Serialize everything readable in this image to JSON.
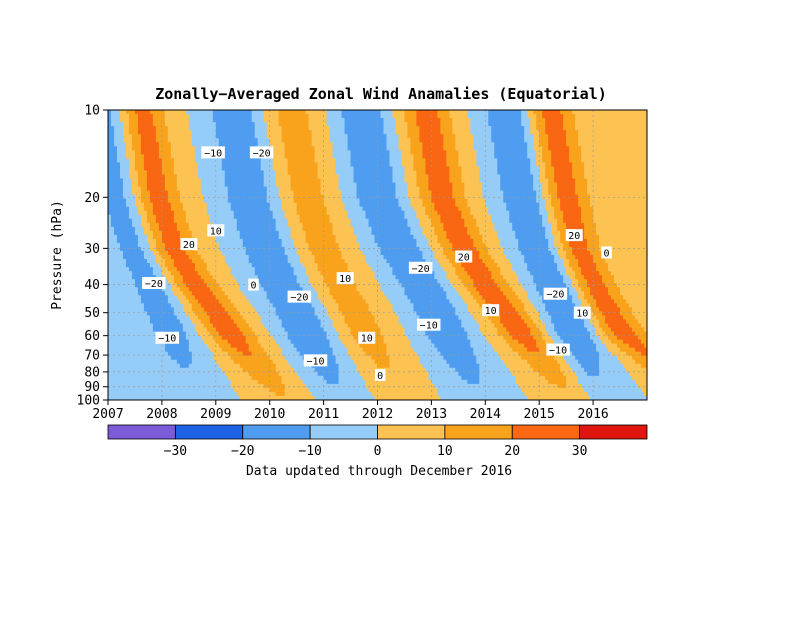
{
  "chart_data": {
    "type": "heatmap",
    "subtype": "filled-contour",
    "title": "Zonally−Averaged Zonal Wind Anamalies (Equatorial)",
    "ylabel": "Pressure (hPa)",
    "xlabel": "",
    "caption": "Data updated through December 2016",
    "x_range": [
      2007,
      2017
    ],
    "x_ticks": [
      "2007",
      "2008",
      "2009",
      "2010",
      "2011",
      "2012",
      "2013",
      "2014",
      "2015",
      "2016"
    ],
    "y_scale": "log",
    "y_range": [
      100,
      10
    ],
    "y_ticks": [
      "10",
      "20",
      "30",
      "40",
      "50",
      "60",
      "70",
      "80",
      "90",
      "100"
    ],
    "y_tick_values": [
      10,
      20,
      30,
      40,
      50,
      60,
      70,
      80,
      90,
      100
    ],
    "colorbar": {
      "boundaries": [
        -40,
        -30,
        -20,
        -10,
        0,
        10,
        20,
        30,
        40
      ],
      "labels": [
        "−30",
        "−20",
        "−10",
        "0",
        "10",
        "20",
        "30"
      ],
      "label_values": [
        -30,
        -20,
        -10,
        0,
        10,
        20,
        30
      ],
      "colors": [
        "#7b5bd6",
        "#1e63e3",
        "#4f9df0",
        "#96cdf8",
        "#fcc252",
        "#f9a31c",
        "#f96713",
        "#e0150e"
      ]
    },
    "grid": true,
    "contour_labels": [
      {
        "text": "−10",
        "x": 2008.95,
        "p": 14
      },
      {
        "text": "−20",
        "x": 2009.85,
        "p": 14
      },
      {
        "text": "20",
        "x": 2008.5,
        "p": 29
      },
      {
        "text": "10",
        "x": 2009.0,
        "p": 26
      },
      {
        "text": "−20",
        "x": 2007.85,
        "p": 39.5
      },
      {
        "text": "0",
        "x": 2009.7,
        "p": 40
      },
      {
        "text": "−20",
        "x": 2010.55,
        "p": 44
      },
      {
        "text": "10",
        "x": 2011.4,
        "p": 38
      },
      {
        "text": "−10",
        "x": 2008.1,
        "p": 61
      },
      {
        "text": "−10",
        "x": 2010.85,
        "p": 73
      },
      {
        "text": "10",
        "x": 2011.8,
        "p": 61
      },
      {
        "text": "0",
        "x": 2012.05,
        "p": 82
      },
      {
        "text": "−20",
        "x": 2012.8,
        "p": 35
      },
      {
        "text": "−10",
        "x": 2012.95,
        "p": 55
      },
      {
        "text": "20",
        "x": 2013.6,
        "p": 32
      },
      {
        "text": "10",
        "x": 2014.1,
        "p": 49
      },
      {
        "text": "−20",
        "x": 2015.3,
        "p": 43
      },
      {
        "text": "−10",
        "x": 2015.35,
        "p": 67
      },
      {
        "text": "20",
        "x": 2015.65,
        "p": 27
      },
      {
        "text": "10",
        "x": 2015.8,
        "p": 50
      },
      {
        "text": "0",
        "x": 2016.25,
        "p": 31
      }
    ],
    "qbo_bands": [
      {
        "label": "negative wind anomaly band 2007",
        "value": -15,
        "times": [
          2007.0,
          2007.2,
          2007.5,
          2007.8,
          2008.0,
          2008.2,
          2008.35
        ],
        "pressures": [
          10,
          20,
          30,
          40,
          50,
          60,
          70
        ]
      },
      {
        "label": "positive wind anomaly band 2008",
        "value": 25,
        "times": [
          2007.6,
          2007.9,
          2008.2,
          2008.6,
          2009.0,
          2009.3,
          2009.6
        ],
        "pressures": [
          10,
          20,
          30,
          40,
          50,
          60,
          70
        ]
      },
      {
        "label": "negative wind anomaly band 2009",
        "value": -20,
        "times": [
          2009.3,
          2009.6,
          2009.9,
          2010.2,
          2010.5,
          2010.7,
          2010.9
        ],
        "pressures": [
          10,
          20,
          30,
          40,
          50,
          60,
          70
        ]
      },
      {
        "label": "positive wind anomaly band 2011",
        "value": 15,
        "times": [
          2010.4,
          2010.7,
          2011.0,
          2011.3,
          2011.6,
          2011.8,
          2012.0
        ],
        "pressures": [
          10,
          20,
          30,
          40,
          50,
          60,
          70
        ]
      },
      {
        "label": "negative wind anomaly band 2012",
        "value": -20,
        "times": [
          2011.7,
          2012.0,
          2012.4,
          2012.8,
          2013.1,
          2013.3,
          2013.5
        ],
        "pressures": [
          10,
          20,
          30,
          40,
          50,
          60,
          70
        ]
      },
      {
        "label": "positive wind anomaly band 2013",
        "value": 25,
        "times": [
          2012.9,
          2013.2,
          2013.6,
          2014.0,
          2014.4,
          2014.7,
          2015.0
        ],
        "pressures": [
          10,
          20,
          30,
          40,
          50,
          60,
          70
        ]
      },
      {
        "label": "negative wind anomaly band 2015",
        "value": -20,
        "times": [
          2014.4,
          2014.7,
          2015.0,
          2015.3,
          2015.5,
          2015.65,
          2015.8
        ],
        "pressures": [
          10,
          20,
          30,
          40,
          50,
          60,
          70
        ]
      },
      {
        "label": "positive wind anomaly band 2016",
        "value": 25,
        "times": [
          2015.2,
          2015.5,
          2015.7,
          2016.0,
          2016.3,
          2016.6,
          2017.0
        ],
        "pressures": [
          10,
          20,
          30,
          40,
          50,
          60,
          70
        ]
      }
    ]
  }
}
